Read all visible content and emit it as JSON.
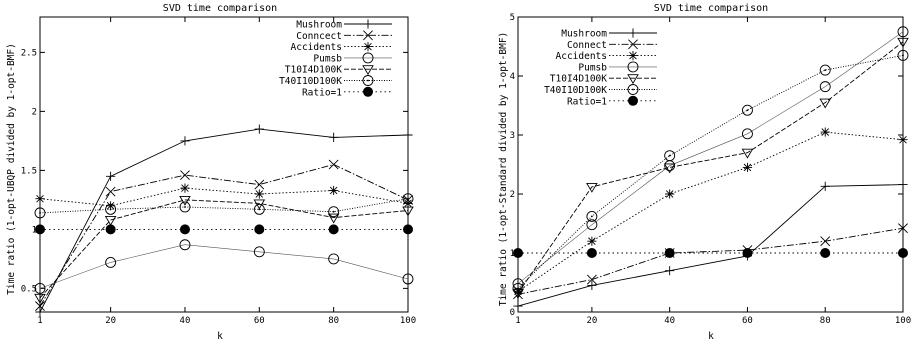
{
  "chart_data": [
    {
      "type": "line",
      "title": "SVD time comparison",
      "xlabel": "k",
      "ylabel": "Time ratio (1-opt-UBQP divided by 1-opt-BMF)",
      "x": [
        1,
        20,
        40,
        60,
        80,
        100
      ],
      "xticks": [
        "1",
        "20",
        "40",
        "60",
        "80",
        "100"
      ],
      "yticks": [
        "0.5",
        "1",
        "1.5",
        "2",
        "2.5"
      ],
      "xlim": [
        1,
        100
      ],
      "ylim": [
        0.3,
        2.8
      ],
      "grid": false,
      "legend_position": "top-right",
      "series": [
        {
          "name": "Mushroom",
          "marker": "plus",
          "dash": "solid",
          "values": [
            0.3,
            1.45,
            1.75,
            1.85,
            1.78,
            1.8
          ]
        },
        {
          "name": "Conncect",
          "marker": "cross",
          "dash": "dashdot",
          "values": [
            0.35,
            1.32,
            1.46,
            1.38,
            1.55,
            1.25
          ]
        },
        {
          "name": "Accidents",
          "marker": "star",
          "dash": "dotted",
          "values": [
            1.26,
            1.2,
            1.35,
            1.3,
            1.33,
            1.22
          ]
        },
        {
          "name": "Pumsb",
          "marker": "circle",
          "dash": "solid-light",
          "values": [
            0.5,
            0.72,
            0.87,
            0.81,
            0.75,
            0.58
          ]
        },
        {
          "name": "T10I4D100K",
          "marker": "triangle-down",
          "dash": "dashed",
          "values": [
            0.42,
            1.08,
            1.25,
            1.22,
            1.1,
            1.16
          ]
        },
        {
          "name": "T40I10D100K",
          "marker": "circle-dot",
          "dash": "densedot",
          "values": [
            1.14,
            1.17,
            1.19,
            1.17,
            1.15,
            1.26
          ]
        },
        {
          "name": "Ratio=1",
          "marker": "filled-circle",
          "dash": "sparsedot",
          "values": [
            1.0,
            1.0,
            1.0,
            1.0,
            1.0,
            1.0
          ]
        }
      ]
    },
    {
      "type": "line",
      "title": "SVD time comparison",
      "xlabel": "k",
      "ylabel": "Time ratio (1-opt-Standard divided by 1-opt-BMF)",
      "x": [
        1,
        20,
        40,
        60,
        80,
        100
      ],
      "xticks": [
        "1",
        "20",
        "40",
        "60",
        "80",
        "100"
      ],
      "yticks": [
        "0",
        "1",
        "2",
        "3",
        "4",
        "5"
      ],
      "xlim": [
        1,
        100
      ],
      "ylim": [
        0,
        5
      ],
      "grid": false,
      "legend_position": "top-left",
      "series": [
        {
          "name": "Mushroom",
          "marker": "plus",
          "dash": "solid",
          "values": [
            0.1,
            0.45,
            0.7,
            0.95,
            2.13,
            2.16
          ]
        },
        {
          "name": "Connect",
          "marker": "cross",
          "dash": "dashdot",
          "values": [
            0.3,
            0.55,
            1.0,
            1.05,
            1.2,
            1.42
          ]
        },
        {
          "name": "Accidents",
          "marker": "star",
          "dash": "dotted",
          "values": [
            0.35,
            1.2,
            2.0,
            2.45,
            3.05,
            2.92
          ]
        },
        {
          "name": "Pumsb",
          "marker": "circle",
          "dash": "solid-light",
          "values": [
            0.48,
            1.48,
            2.48,
            3.02,
            3.82,
            4.75
          ]
        },
        {
          "name": "T10I4D100K",
          "marker": "triangle-down",
          "dash": "dashed",
          "values": [
            0.32,
            2.12,
            2.45,
            2.7,
            3.55,
            4.58
          ]
        },
        {
          "name": "T40I10D100K",
          "marker": "circle-dot",
          "dash": "densedot",
          "values": [
            0.4,
            1.62,
            2.65,
            3.42,
            4.1,
            4.35
          ]
        },
        {
          "name": "Ratio=1",
          "marker": "filled-circle",
          "dash": "sparsedot",
          "values": [
            1.0,
            1.0,
            1.0,
            1.0,
            1.0,
            1.0
          ]
        }
      ]
    }
  ]
}
